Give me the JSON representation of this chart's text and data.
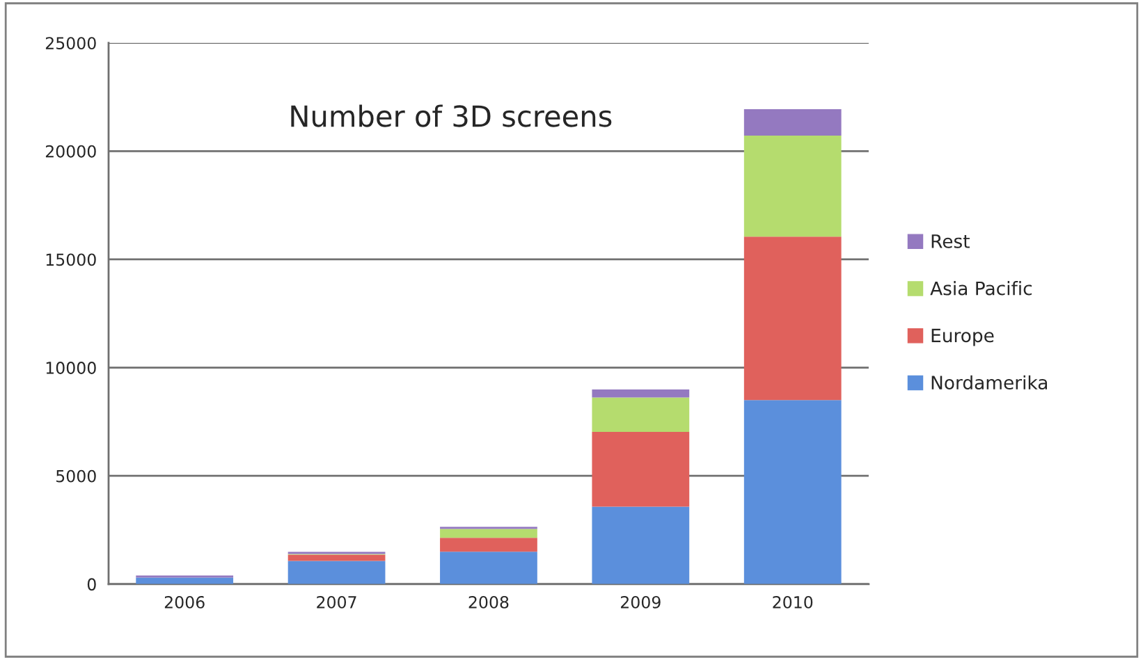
{
  "chart_data": {
    "type": "bar",
    "title": "Number of 3D screens",
    "categories": [
      "2006",
      "2007",
      "2008",
      "2009",
      "2010"
    ],
    "stacked": true,
    "series": [
      {
        "name": "Nordamerika",
        "color": "#5b8fdc",
        "values": [
          300,
          1070,
          1500,
          3580,
          8500
        ]
      },
      {
        "name": "Europe",
        "color": "#e0615c",
        "values": [
          0,
          290,
          640,
          3450,
          7550
        ]
      },
      {
        "name": "Asia Pacific",
        "color": "#b5dc6e",
        "values": [
          0,
          30,
          410,
          1590,
          4670
        ]
      },
      {
        "name": "Rest",
        "color": "#9479c0",
        "values": [
          100,
          100,
          100,
          370,
          1220
        ]
      }
    ],
    "ylim": [
      0,
      25000
    ],
    "yticks": [
      0,
      5000,
      10000,
      15000,
      20000,
      25000
    ],
    "grid": "y",
    "legend": "right"
  }
}
